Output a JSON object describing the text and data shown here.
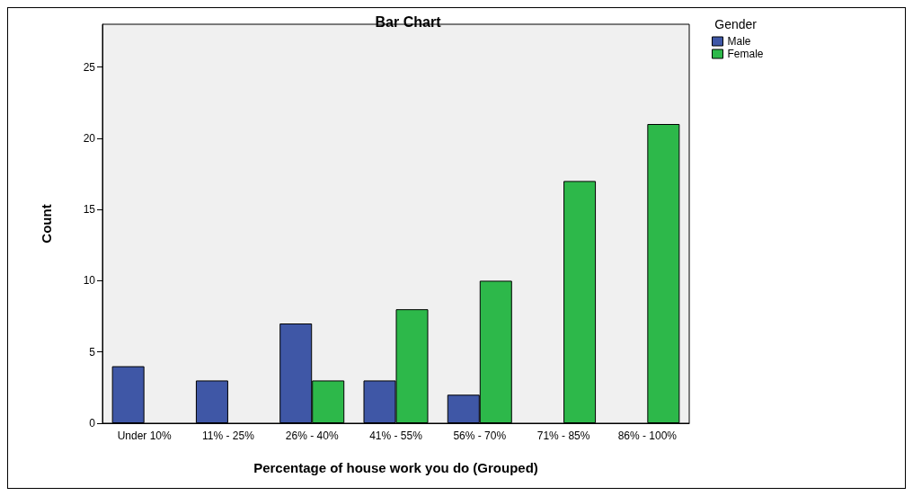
{
  "chart_data": {
    "type": "bar",
    "title": "Bar Chart",
    "xlabel": "Percentage of house work you do (Grouped)",
    "ylabel": "Count",
    "legend_title": "Gender",
    "categories": [
      "Under 10%",
      "11% - 25%",
      "26% - 40%",
      "41% - 55%",
      "56% - 70%",
      "71% - 85%",
      "86% - 100%"
    ],
    "series": [
      {
        "name": "Male",
        "color": "#3f57a6",
        "values": [
          4,
          3,
          7,
          3,
          2,
          null,
          null
        ]
      },
      {
        "name": "Female",
        "color": "#2db84a",
        "values": [
          null,
          null,
          3,
          8,
          10,
          17,
          21
        ]
      }
    ],
    "ylim": [
      0,
      28
    ],
    "yticks": [
      0,
      5,
      10,
      15,
      20,
      25
    ],
    "grid": false,
    "legend": "top right"
  }
}
